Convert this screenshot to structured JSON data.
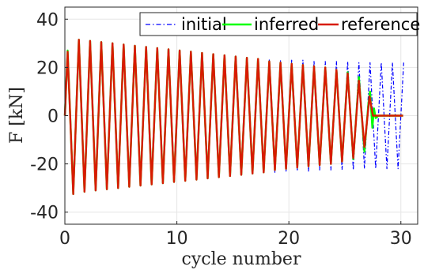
{
  "chart_data": {
    "type": "line",
    "title": "",
    "xlabel": "cycle number",
    "ylabel": "F [kN]",
    "xlim": [
      0,
      31.5
    ],
    "ylim": [
      -45,
      45
    ],
    "xticks": [
      0,
      10,
      20,
      30
    ],
    "yticks": [
      40,
      20,
      0,
      -20,
      -40
    ],
    "grid": true,
    "legend": {
      "position": "top-right",
      "entries": [
        "initial",
        "inferred",
        "reference"
      ]
    },
    "series": [
      {
        "name": "initial",
        "color": "#0000ff",
        "style": "dash-dot",
        "x": [
          0,
          0.25,
          0.75,
          1.25,
          1.75,
          2.25,
          2.75,
          3.25,
          3.75,
          4.25,
          4.75,
          5.25,
          5.75,
          6.25,
          6.75,
          7.25,
          7.75,
          8.25,
          8.75,
          9.25,
          9.75,
          10.25,
          10.75,
          11.25,
          11.75,
          12.25,
          12.75,
          13.25,
          13.75,
          14.25,
          14.75,
          15.25,
          15.75,
          16.25,
          16.75,
          17.25,
          17.75,
          18.25,
          18.75,
          19.25,
          19.75,
          20.25,
          20.75,
          21.25,
          21.75,
          22.25,
          22.75,
          23.25,
          23.75,
          24.25,
          24.75,
          25.25,
          25.75,
          26.25,
          26.75,
          27.25,
          27.75,
          28.25,
          28.75,
          29.25,
          29.75,
          30.25
        ],
        "y": [
          0,
          26.5,
          -32.5,
          31.5,
          -31.5,
          31,
          -31,
          30.5,
          -30.5,
          30,
          -30,
          29.5,
          -29.5,
          29,
          -29,
          28.5,
          -28.5,
          28,
          -28,
          27.5,
          -27.5,
          27,
          -27,
          26.5,
          -26.5,
          26,
          -26,
          25.5,
          -25.5,
          25,
          -25,
          24.5,
          -24.5,
          24,
          -24,
          23.5,
          -23.5,
          23.5,
          -23.5,
          23,
          -23,
          23,
          -23,
          23,
          -23,
          22.5,
          -22.5,
          22.5,
          -22.5,
          22.5,
          -22.5,
          22.5,
          -22.5,
          22,
          -22,
          22,
          -22,
          22,
          -22,
          22,
          -22,
          22
        ]
      },
      {
        "name": "inferred",
        "color": "#00ff00",
        "style": "solid",
        "x": [
          0,
          0.25,
          0.75,
          1.25,
          1.75,
          2.25,
          2.75,
          3.25,
          3.75,
          4.25,
          4.75,
          5.25,
          5.75,
          6.25,
          6.75,
          7.25,
          7.75,
          8.25,
          8.75,
          9.25,
          9.75,
          10.25,
          10.75,
          11.25,
          11.75,
          12.25,
          12.75,
          13.25,
          13.75,
          14.25,
          14.75,
          15.25,
          15.75,
          16.25,
          16.75,
          17.25,
          17.75,
          18.25,
          18.75,
          19.25,
          19.75,
          20.25,
          20.75,
          21.25,
          21.75,
          22.25,
          22.75,
          23.25,
          23.75,
          24.25,
          24.75,
          25.25,
          25.75,
          26.25,
          26.75,
          27.1,
          27.25,
          27.45,
          27.6,
          27.75,
          28,
          30.2
        ],
        "y": [
          0,
          27,
          -32.5,
          31.5,
          -31.5,
          31,
          -31,
          30.5,
          -30.5,
          30,
          -30,
          29.5,
          -29.5,
          29,
          -29,
          28.5,
          -28.5,
          28,
          -28,
          27.5,
          -27.5,
          27,
          -27,
          26.5,
          -26.5,
          26,
          -26,
          25.5,
          -25.5,
          25,
          -25,
          24.5,
          -24.5,
          24,
          -24,
          23.5,
          -23.5,
          22.5,
          -22.5,
          22,
          -22,
          21.5,
          -21.5,
          21,
          -21,
          20.5,
          -20.5,
          20,
          -20,
          19,
          -19,
          18,
          -18,
          16,
          -15,
          5,
          10,
          -5,
          3,
          -1,
          0,
          0
        ]
      },
      {
        "name": "reference",
        "color": "#d81b00",
        "style": "solid",
        "x": [
          0,
          0.25,
          0.75,
          1.25,
          1.75,
          2.25,
          2.75,
          3.25,
          3.75,
          4.25,
          4.75,
          5.25,
          5.75,
          6.25,
          6.75,
          7.25,
          7.75,
          8.25,
          8.75,
          9.25,
          9.75,
          10.25,
          10.75,
          11.25,
          11.75,
          12.25,
          12.75,
          13.25,
          13.75,
          14.25,
          14.75,
          15.25,
          15.75,
          16.25,
          16.75,
          17.25,
          17.75,
          18.25,
          18.75,
          19.25,
          19.75,
          20.25,
          20.75,
          21.25,
          21.75,
          22.25,
          22.75,
          23.25,
          23.75,
          24.25,
          24.75,
          25.25,
          25.75,
          26.25,
          26.75,
          27.2,
          27.5,
          30.2
        ],
        "y": [
          0,
          26.5,
          -32.5,
          31.5,
          -31.5,
          31,
          -31,
          30.5,
          -30.5,
          30,
          -30,
          29.5,
          -29.5,
          29,
          -29,
          28.5,
          -28.5,
          28,
          -28,
          27.5,
          -27.5,
          27,
          -27,
          26.5,
          -26.5,
          26,
          -26,
          25.5,
          -25.5,
          25,
          -25,
          24.5,
          -24.5,
          24,
          -24,
          23.5,
          -23.5,
          22.5,
          -22.5,
          22,
          -22,
          21.5,
          -21.5,
          21,
          -21,
          20.5,
          -20.5,
          20,
          -20,
          19,
          -19,
          17.5,
          -17.5,
          14.5,
          -13,
          8,
          0,
          0
        ]
      }
    ]
  }
}
